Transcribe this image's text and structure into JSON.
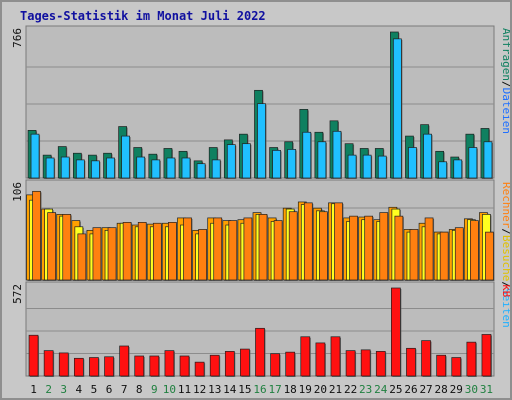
{
  "title": "Tages-Statistik im Monat Juli 2022",
  "colors": {
    "anfragen": "#0f8060",
    "dateien": "#20c0ff",
    "seiten": "#ffa000",
    "besuche": "#ffff20",
    "rechner": "#ff8010",
    "kb": "#ff1010",
    "weekend_label": "#208040",
    "weekday_label": "#101010"
  },
  "chart_data": [
    {
      "type": "bar",
      "max_label": "766",
      "ylim": [
        0,
        766
      ],
      "legend": [
        {
          "text": "Anfragen",
          "color": "#0f8060"
        },
        {
          "text": "/",
          "color": "#101010"
        },
        {
          "text": "Dateien",
          "color": "#2070ff"
        }
      ],
      "series": [
        {
          "key": "Anfragen",
          "values": [
            250,
            120,
            165,
            130,
            120,
            130,
            270,
            160,
            125,
            155,
            140,
            90,
            160,
            200,
            230,
            460,
            160,
            190,
            360,
            240,
            300,
            180,
            155,
            155,
            766,
            220,
            280,
            140,
            110,
            230,
            260
          ]
        },
        {
          "key": "Dateien",
          "values": [
            230,
            105,
            110,
            95,
            90,
            105,
            220,
            110,
            95,
            105,
            105,
            75,
            95,
            175,
            180,
            390,
            145,
            150,
            240,
            190,
            245,
            120,
            120,
            115,
            730,
            160,
            230,
            85,
            95,
            160,
            190
          ]
        }
      ]
    },
    {
      "type": "bar",
      "max_label": "106",
      "ylim": [
        0,
        106
      ],
      "legend": [
        {
          "text": "Rechner",
          "color": "#ff8010"
        },
        {
          "text": "/",
          "color": "#101010"
        },
        {
          "text": "Besuche",
          "color": "#e0c000"
        },
        {
          "text": "/",
          "color": "#101010"
        },
        {
          "text": "Seiten",
          "color": "#20b0ff"
        }
      ],
      "series": [
        {
          "key": "Seiten",
          "values": [
            96,
            80,
            74,
            67,
            56,
            59,
            64,
            62,
            63,
            64,
            70,
            56,
            70,
            67,
            68,
            76,
            70,
            81,
            88,
            81,
            87,
            70,
            71,
            68,
            82,
            57,
            64,
            54,
            57,
            69,
            76
          ]
        },
        {
          "key": "Besuche",
          "values": [
            90,
            80,
            72,
            60,
            52,
            56,
            64,
            60,
            60,
            60,
            62,
            52,
            64,
            62,
            64,
            74,
            66,
            80,
            85,
            78,
            86,
            66,
            68,
            66,
            80,
            54,
            60,
            52,
            56,
            68,
            74
          ]
        },
        {
          "key": "Rechner",
          "values": [
            100,
            76,
            74,
            52,
            59,
            59,
            65,
            65,
            64,
            65,
            70,
            57,
            70,
            67,
            70,
            74,
            67,
            77,
            87,
            77,
            87,
            72,
            72,
            76,
            72,
            57,
            70,
            54,
            59,
            67,
            54
          ]
        }
      ]
    },
    {
      "type": "bar",
      "max_label": "572",
      "ylim": [
        0,
        572
      ],
      "legend": [
        {
          "text": "kB",
          "color": "#ff1010"
        }
      ],
      "series": [
        {
          "key": "kB",
          "values": [
            265,
            165,
            150,
            115,
            120,
            125,
            195,
            130,
            130,
            165,
            130,
            90,
            135,
            160,
            175,
            310,
            145,
            155,
            255,
            215,
            255,
            165,
            170,
            160,
            572,
            180,
            230,
            135,
            120,
            220,
            270
          ]
        }
      ]
    }
  ],
  "days": [
    "1",
    "2",
    "3",
    "4",
    "5",
    "6",
    "7",
    "8",
    "9",
    "10",
    "11",
    "12",
    "13",
    "14",
    "15",
    "16",
    "17",
    "18",
    "19",
    "20",
    "21",
    "22",
    "23",
    "24",
    "25",
    "26",
    "27",
    "28",
    "29",
    "30",
    "31"
  ],
  "weekend_days": [
    "2",
    "3",
    "9",
    "10",
    "16",
    "17",
    "23",
    "24",
    "30",
    "31"
  ]
}
